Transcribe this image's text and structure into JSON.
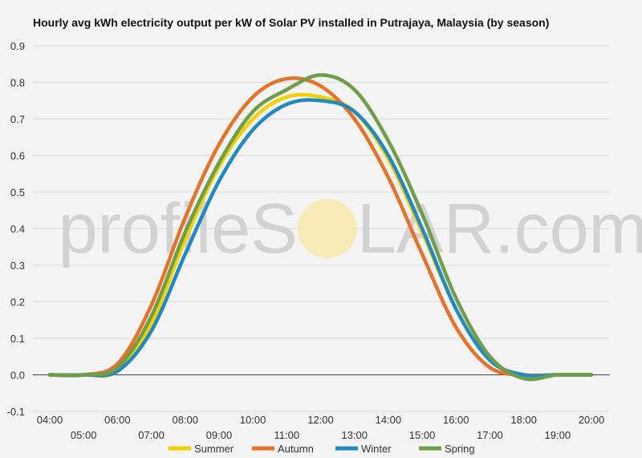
{
  "chart_data": {
    "type": "line",
    "title": "Hourly avg kWh electricity output per kW of Solar PV installed in Putrajaya, Malaysia (by season)",
    "xlabel": "",
    "ylabel": "",
    "ylim": [
      -0.1,
      0.9
    ],
    "yticks": [
      "-0.1",
      "0.0",
      "0.1",
      "0.2",
      "0.3",
      "0.4",
      "0.5",
      "0.6",
      "0.7",
      "0.8",
      "0.9"
    ],
    "x": [
      "04:00",
      "05:00",
      "06:00",
      "07:00",
      "08:00",
      "09:00",
      "10:00",
      "11:00",
      "12:00",
      "13:00",
      "14:00",
      "15:00",
      "16:00",
      "17:00",
      "18:00",
      "19:00",
      "20:00"
    ],
    "grid": true,
    "legend": "bottom",
    "series": [
      {
        "name": "Summer",
        "color": "#f5d000",
        "values": [
          0.0,
          0.0,
          0.01,
          0.14,
          0.37,
          0.57,
          0.7,
          0.76,
          0.76,
          0.72,
          0.59,
          0.39,
          0.18,
          0.04,
          0.0,
          0.0,
          0.0
        ]
      },
      {
        "name": "Autumn",
        "color": "#e8722a",
        "values": [
          0.0,
          0.0,
          0.03,
          0.19,
          0.43,
          0.63,
          0.76,
          0.81,
          0.79,
          0.7,
          0.54,
          0.33,
          0.13,
          0.02,
          0.0,
          0.0,
          0.0
        ]
      },
      {
        "name": "Winter",
        "color": "#2189c4",
        "values": [
          0.0,
          0.0,
          0.01,
          0.12,
          0.33,
          0.53,
          0.67,
          0.74,
          0.75,
          0.72,
          0.6,
          0.4,
          0.18,
          0.04,
          0.0,
          0.0,
          0.0
        ]
      },
      {
        "name": "Spring",
        "color": "#6f9e4b",
        "values": [
          0.0,
          0.0,
          0.02,
          0.16,
          0.39,
          0.58,
          0.72,
          0.78,
          0.82,
          0.78,
          0.64,
          0.44,
          0.21,
          0.05,
          -0.01,
          0.0,
          0.0
        ]
      }
    ],
    "watermark": {
      "text_left": "profileS",
      "text_right": "LAR.com"
    }
  }
}
